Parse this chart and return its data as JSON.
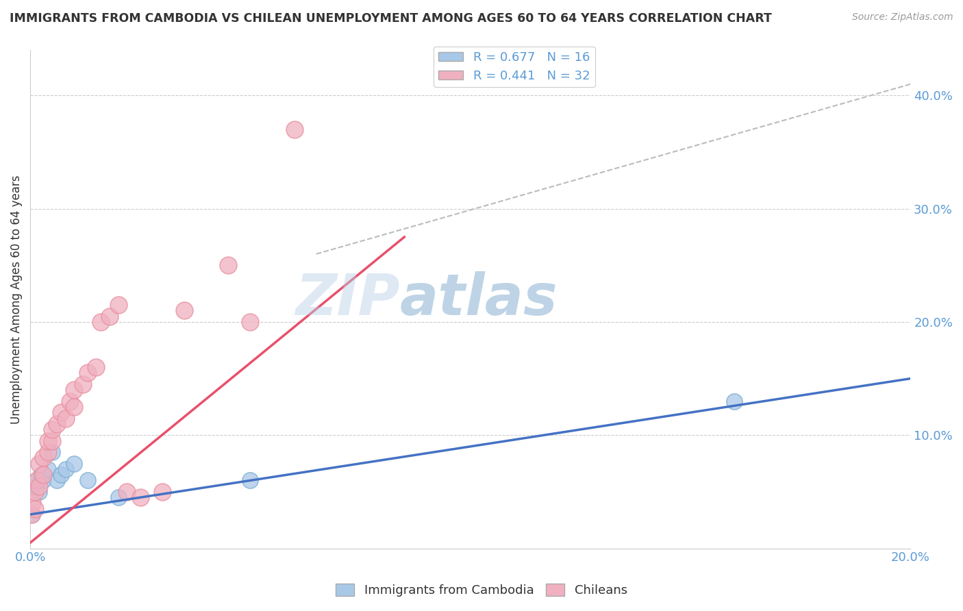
{
  "title": "IMMIGRANTS FROM CAMBODIA VS CHILEAN UNEMPLOYMENT AMONG AGES 60 TO 64 YEARS CORRELATION CHART",
  "source": "Source: ZipAtlas.com",
  "ylabel": "Unemployment Among Ages 60 to 64 years",
  "xlim": [
    0.0,
    0.2
  ],
  "ylim": [
    0.0,
    0.44
  ],
  "blue_r": 0.677,
  "blue_n": 16,
  "pink_r": 0.441,
  "pink_n": 32,
  "blue_color": "#a8c8e8",
  "pink_color": "#f0b0c0",
  "blue_line_color": "#4472c4",
  "pink_line_color": "#e8506a",
  "dashed_line_color": "#bbbbbb",
  "grid_color": "#cccccc",
  "title_color": "#333333",
  "tick_color": "#5b9bd5",
  "background_color": "#ffffff",
  "watermark": "ZIPatlas",
  "legend_label_blue": "Immigrants from Cambodia",
  "legend_label_pink": "Chileans",
  "blue_x": [
    0.001,
    0.0015,
    0.002,
    0.0025,
    0.003,
    0.004,
    0.005,
    0.006,
    0.007,
    0.008,
    0.01,
    0.013,
    0.02,
    0.05,
    0.16,
    0.0005
  ],
  "blue_y": [
    0.055,
    0.06,
    0.05,
    0.065,
    0.06,
    0.07,
    0.085,
    0.06,
    0.065,
    0.07,
    0.075,
    0.06,
    0.045,
    0.06,
    0.13,
    0.03
  ],
  "pink_x": [
    0.0003,
    0.0005,
    0.001,
    0.001,
    0.0015,
    0.002,
    0.002,
    0.003,
    0.003,
    0.004,
    0.004,
    0.005,
    0.005,
    0.006,
    0.007,
    0.008,
    0.009,
    0.01,
    0.01,
    0.012,
    0.013,
    0.015,
    0.016,
    0.018,
    0.02,
    0.022,
    0.025,
    0.03,
    0.035,
    0.045,
    0.05,
    0.06
  ],
  "pink_y": [
    0.03,
    0.04,
    0.035,
    0.05,
    0.06,
    0.055,
    0.075,
    0.065,
    0.08,
    0.085,
    0.095,
    0.095,
    0.105,
    0.11,
    0.12,
    0.115,
    0.13,
    0.125,
    0.14,
    0.145,
    0.155,
    0.16,
    0.2,
    0.205,
    0.215,
    0.05,
    0.045,
    0.05,
    0.21,
    0.25,
    0.2,
    0.37
  ],
  "blue_line_x": [
    0.0,
    0.2
  ],
  "blue_line_y": [
    0.03,
    0.15
  ],
  "pink_line_x": [
    0.0,
    0.085
  ],
  "pink_line_y": [
    0.005,
    0.275
  ],
  "dash_line_x": [
    0.065,
    0.2
  ],
  "dash_line_y": [
    0.26,
    0.41
  ]
}
